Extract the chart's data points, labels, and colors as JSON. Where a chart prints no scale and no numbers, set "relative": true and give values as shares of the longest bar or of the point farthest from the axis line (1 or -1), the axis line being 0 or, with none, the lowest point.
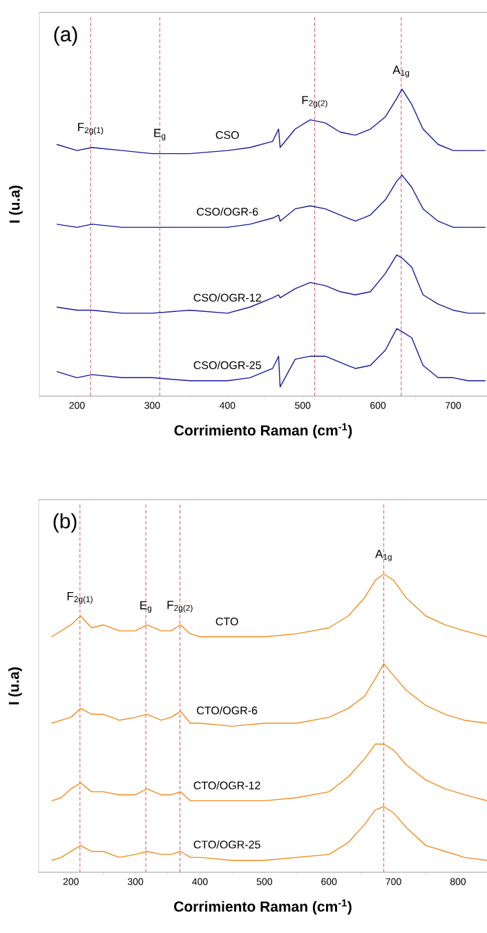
{
  "chart_data": [
    {
      "type": "line",
      "title": "(a)",
      "xlabel": "Corrimiento Raman (cm$^{-1}$)",
      "ylabel": "I (u.a)",
      "relative": true,
      "x": [
        173,
        200,
        220,
        260,
        300,
        350,
        400,
        430,
        460,
        468,
        470,
        490,
        510,
        530,
        550,
        570,
        590,
        610,
        625,
        632,
        645,
        660,
        680,
        700,
        720,
        743
      ],
      "xlim": [
        150,
        745
      ],
      "xticks": [
        {
          "value": 150,
          "label": null
        },
        200,
        {
          "value": 250,
          "label": null
        },
        300,
        {
          "value": 350,
          "label": null
        },
        400,
        {
          "value": 450,
          "label": null
        },
        500,
        {
          "value": 550,
          "label": null
        },
        600,
        {
          "value": 650,
          "label": null
        },
        700
      ],
      "series": [
        {
          "name": "CSO",
          "color": "#14199a",
          "values": [
            0.82,
            0.8,
            0.81,
            0.8,
            0.79,
            0.79,
            0.8,
            0.81,
            0.83,
            0.87,
            0.81,
            0.87,
            0.9,
            0.89,
            0.86,
            0.85,
            0.87,
            0.91,
            0.97,
            1.0,
            0.95,
            0.87,
            0.82,
            0.8,
            0.8,
            0.8
          ]
        },
        {
          "name": "CSO/OGR-6",
          "color": "#14199a",
          "values": [
            0.56,
            0.55,
            0.56,
            0.55,
            0.55,
            0.55,
            0.55,
            0.56,
            0.58,
            0.59,
            0.57,
            0.61,
            0.62,
            0.61,
            0.59,
            0.57,
            0.59,
            0.64,
            0.7,
            0.72,
            0.68,
            0.61,
            0.57,
            0.55,
            0.55,
            0.55
          ]
        },
        {
          "name": "CSO/OGR-12",
          "color": "#14199a",
          "values": [
            0.29,
            0.28,
            0.28,
            0.27,
            0.27,
            0.28,
            0.27,
            0.29,
            0.32,
            0.33,
            0.32,
            0.35,
            0.37,
            0.36,
            0.34,
            0.33,
            0.34,
            0.4,
            0.46,
            0.45,
            0.42,
            0.33,
            0.3,
            0.28,
            0.27,
            0.27
          ]
        },
        {
          "name": "CSO/OGR-25",
          "color": "#14199a",
          "values": [
            0.08,
            0.06,
            0.07,
            0.06,
            0.06,
            0.05,
            0.05,
            0.06,
            0.09,
            0.13,
            0.03,
            0.12,
            0.13,
            0.13,
            0.11,
            0.09,
            0.1,
            0.15,
            0.22,
            0.21,
            0.19,
            0.1,
            0.06,
            0.06,
            0.05,
            0.05
          ]
        }
      ],
      "ref_lines": [
        {
          "axis": "x",
          "value": 218,
          "label": "F$_{2g(1)}$",
          "color": "#d9262c",
          "line_style": "dashed"
        },
        {
          "axis": "x",
          "value": 310,
          "label": "E$_{g}$",
          "color": "#d9262c",
          "line_style": "dashed"
        },
        {
          "axis": "x",
          "value": 516,
          "label": "F$_{2g(2)}$",
          "color": "#d9262c",
          "line_style": "dashed"
        },
        {
          "axis": "x",
          "value": 631,
          "label": "A$_{1g}$",
          "color": "#d9262c",
          "line_style": "dashed"
        }
      ]
    },
    {
      "type": "line",
      "title": "(b)",
      "xlabel": "Corrimiento Raman (cm$^{-1}$)",
      "ylabel": "I (u.a)",
      "relative": true,
      "x": [
        170,
        185,
        200,
        215,
        232,
        250,
        275,
        300,
        318,
        340,
        355,
        370,
        385,
        400,
        450,
        500,
        550,
        600,
        630,
        655,
        672,
        685,
        700,
        720,
        750,
        780,
        810,
        845
      ],
      "xlim": [
        150,
        845
      ],
      "xticks": [
        {
          "value": 150,
          "label": null
        },
        200,
        {
          "value": 250,
          "label": null
        },
        300,
        {
          "value": 350,
          "label": null
        },
        400,
        {
          "value": 450,
          "label": null
        },
        500,
        {
          "value": 550,
          "label": null
        },
        600,
        {
          "value": 650,
          "label": null
        },
        700,
        {
          "value": 750,
          "label": null
        },
        800
      ],
      "series": [
        {
          "name": "CTO",
          "color": "#f28c1e",
          "values": [
            0.79,
            0.81,
            0.83,
            0.86,
            0.82,
            0.83,
            0.81,
            0.81,
            0.83,
            0.81,
            0.81,
            0.83,
            0.8,
            0.79,
            0.79,
            0.79,
            0.8,
            0.82,
            0.86,
            0.92,
            0.98,
            1.0,
            0.98,
            0.92,
            0.86,
            0.83,
            0.81,
            0.79
          ]
        },
        {
          "name": "CTO/OGR-6",
          "color": "#f28c1e",
          "values": [
            0.5,
            0.51,
            0.52,
            0.55,
            0.53,
            0.53,
            0.51,
            0.52,
            0.53,
            0.51,
            0.52,
            0.54,
            0.5,
            0.5,
            0.49,
            0.5,
            0.5,
            0.52,
            0.55,
            0.59,
            0.65,
            0.7,
            0.66,
            0.61,
            0.56,
            0.53,
            0.51,
            0.5
          ]
        },
        {
          "name": "CTO/OGR-12",
          "color": "#f28c1e",
          "values": [
            0.24,
            0.25,
            0.28,
            0.3,
            0.27,
            0.27,
            0.26,
            0.26,
            0.28,
            0.26,
            0.26,
            0.27,
            0.24,
            0.24,
            0.24,
            0.24,
            0.25,
            0.27,
            0.32,
            0.38,
            0.43,
            0.43,
            0.41,
            0.36,
            0.31,
            0.28,
            0.26,
            0.24
          ]
        },
        {
          "name": "CTO/OGR-25",
          "color": "#f28c1e",
          "values": [
            0.04,
            0.05,
            0.07,
            0.09,
            0.07,
            0.07,
            0.05,
            0.06,
            0.07,
            0.06,
            0.06,
            0.07,
            0.05,
            0.05,
            0.04,
            0.04,
            0.05,
            0.06,
            0.1,
            0.16,
            0.21,
            0.22,
            0.2,
            0.15,
            0.09,
            0.07,
            0.05,
            0.04
          ]
        }
      ],
      "ref_lines": [
        {
          "axis": "x",
          "value": 214,
          "label": "F$_{2g(1)}$",
          "color": "#d9262c",
          "line_style": "dashed"
        },
        {
          "axis": "x",
          "value": 316,
          "label": "E$_{g}$",
          "color": "#d9262c",
          "line_style": "dashed"
        },
        {
          "axis": "x",
          "value": 369,
          "label": "F$_{2g(2)}$",
          "color": "#d9262c",
          "line_style": "dashed"
        },
        {
          "axis": "x",
          "value": 685,
          "label": "A$_{1g}$",
          "color": "#d9262c",
          "line_style": "dashed"
        }
      ]
    }
  ]
}
